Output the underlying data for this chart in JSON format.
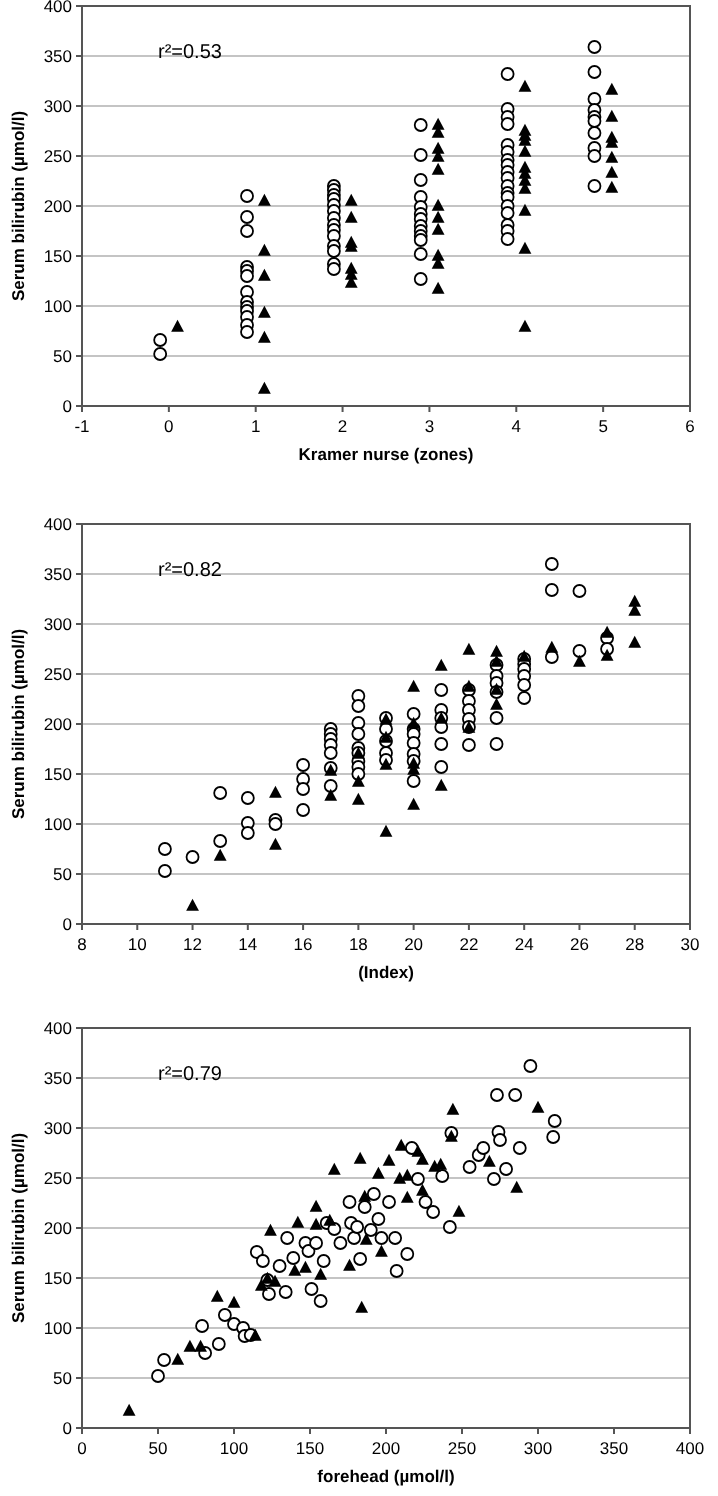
{
  "chart_data": [
    {
      "type": "scatter",
      "xlabel": "Kramer nurse (zones)",
      "ylabel": "Serum bilirubin (µmol/l)",
      "annotations": [
        "r²=0.53"
      ],
      "xlim": [
        -1,
        6
      ],
      "xticks": [
        -1,
        0,
        1,
        2,
        3,
        4,
        5,
        6
      ],
      "ylim": [
        0,
        400
      ],
      "yticks": [
        0,
        50,
        100,
        150,
        200,
        250,
        300,
        350,
        400
      ],
      "grid": "y",
      "series": [
        {
          "color": "#000000",
          "marker": "circle",
          "x": [
            -0.1,
            -0.1,
            0.9,
            0.9,
            0.9,
            0.9,
            0.9,
            0.9,
            0.9,
            0.9,
            0.9,
            0.9,
            0.9,
            0.9,
            0.9,
            1.9,
            1.9,
            1.9,
            1.9,
            1.9,
            1.9,
            1.9,
            1.9,
            1.9,
            1.9,
            1.9,
            1.9,
            1.9,
            1.9,
            2.9,
            2.9,
            2.9,
            2.9,
            2.9,
            2.9,
            2.9,
            2.9,
            2.9,
            2.9,
            2.9,
            2.9,
            2.9,
            3.9,
            3.9,
            3.9,
            3.9,
            3.9,
            3.9,
            3.9,
            3.9,
            3.9,
            3.9,
            3.9,
            3.9,
            3.9,
            3.9,
            3.9,
            3.9,
            3.9,
            3.9,
            4.9,
            4.9,
            4.9,
            4.9,
            4.9,
            4.9,
            4.9,
            4.9,
            4.9,
            4.9
          ],
          "values": [
            66,
            52,
            210,
            189,
            175,
            139,
            135,
            130,
            114,
            104,
            99,
            95,
            89,
            81,
            74,
            220,
            216,
            211,
            207,
            201,
            195,
            188,
            181,
            176,
            170,
            160,
            155,
            142,
            137,
            281,
            251,
            226,
            209,
            199,
            192,
            187,
            180,
            175,
            170,
            166,
            152,
            127,
            332,
            297,
            289,
            282,
            261,
            254,
            246,
            241,
            234,
            228,
            220,
            213,
            209,
            200,
            193,
            181,
            175,
            167,
            359,
            334,
            307,
            296,
            289,
            285,
            273,
            258,
            250,
            220
          ]
        },
        {
          "color": "#000000",
          "marker": "triangle",
          "x": [
            0.1,
            1.1,
            1.1,
            1.1,
            1.1,
            1.1,
            1.1,
            2.1,
            2.1,
            2.1,
            2.1,
            2.1,
            2.1,
            2.1,
            3.1,
            3.1,
            3.1,
            3.1,
            3.1,
            3.1,
            3.1,
            3.1,
            3.1,
            3.1,
            3.1,
            4.1,
            4.1,
            4.1,
            4.1,
            4.1,
            4.1,
            4.1,
            4.1,
            4.1,
            4.1,
            4.1,
            4.1,
            5.1,
            5.1,
            5.1,
            5.1,
            5.1,
            5.1,
            5.1
          ],
          "values": [
            79,
            205,
            155,
            130,
            93,
            68,
            17,
            205,
            188,
            163,
            159,
            137,
            131,
            123,
            281,
            273,
            257,
            249,
            236,
            200,
            188,
            176,
            150,
            142,
            117,
            319,
            275,
            270,
            265,
            254,
            238,
            232,
            225,
            217,
            195,
            157,
            79,
            316,
            289,
            268,
            263,
            248,
            233,
            218
          ]
        }
      ]
    },
    {
      "type": "scatter",
      "xlabel": "(Index)",
      "ylabel": "Serum bilirubin (µmol/l)",
      "annotations": [
        "r²=0.82"
      ],
      "xlim": [
        8,
        30
      ],
      "xticks": [
        8,
        10,
        12,
        14,
        16,
        18,
        20,
        22,
        24,
        26,
        28,
        30
      ],
      "ylim": [
        0,
        400
      ],
      "yticks": [
        0,
        50,
        100,
        150,
        200,
        250,
        300,
        350,
        400
      ],
      "grid": "y",
      "series": [
        {
          "color": "#000000",
          "marker": "circle",
          "x": [
            11,
            11,
            12,
            13,
            13,
            14,
            14,
            14,
            15,
            15,
            16,
            16,
            16,
            16,
            17,
            17,
            17,
            17,
            17,
            17,
            17,
            18,
            18,
            18,
            18,
            18,
            18,
            18,
            18,
            18,
            19,
            19,
            19,
            19,
            19,
            20,
            20,
            20,
            20,
            20,
            20,
            20,
            21,
            21,
            21,
            21,
            21,
            21,
            22,
            22,
            22,
            22,
            22,
            22,
            23,
            23,
            23,
            23,
            23,
            23,
            24,
            24,
            24,
            24,
            24,
            24,
            25,
            25,
            25,
            26,
            26,
            27,
            27
          ],
          "values": [
            75,
            53,
            67,
            131,
            83,
            126,
            101,
            91,
            104,
            100,
            159,
            145,
            135,
            114,
            195,
            190,
            185,
            179,
            171,
            156,
            138,
            228,
            218,
            201,
            190,
            176,
            171,
            163,
            157,
            150,
            206,
            195,
            183,
            171,
            164,
            210,
            195,
            190,
            181,
            170,
            163,
            143,
            234,
            214,
            206,
            197,
            180,
            157,
            234,
            223,
            214,
            205,
            197,
            179,
            259,
            248,
            241,
            232,
            206,
            180,
            265,
            260,
            255,
            248,
            239,
            226,
            360,
            334,
            267,
            333,
            273,
            286,
            275
          ]
        },
        {
          "color": "#000000",
          "marker": "triangle",
          "x": [
            12,
            13,
            15,
            15,
            17,
            17,
            18,
            18,
            18,
            19,
            19,
            19,
            19,
            20,
            20,
            20,
            20,
            20,
            21,
            21,
            21,
            22,
            22,
            22,
            23,
            23,
            23,
            23,
            24,
            25,
            26,
            27,
            27,
            28,
            28,
            28
          ],
          "values": [
            18,
            68,
            131,
            79,
            153,
            128,
            170,
            142,
            124,
            204,
            186,
            159,
            92,
            237,
            200,
            160,
            154,
            119,
            258,
            205,
            138,
            274,
            237,
            196,
            272,
            262,
            234,
            219,
            267,
            276,
            262,
            291,
            268,
            322,
            313,
            281
          ]
        }
      ]
    },
    {
      "type": "scatter",
      "xlabel": "forehead (µmol/l)",
      "ylabel": "Serum bilirubin (µmol/l)",
      "annotations": [
        "r²=0.79"
      ],
      "xlim": [
        0,
        400
      ],
      "xticks": [
        0,
        50,
        100,
        150,
        200,
        250,
        300,
        350,
        400
      ],
      "ylim": [
        0,
        400
      ],
      "yticks": [
        0,
        50,
        100,
        150,
        200,
        250,
        300,
        350,
        400
      ],
      "grid": "y",
      "series": [
        {
          "color": "#000000",
          "marker": "circle",
          "x": [
            50,
            54,
            79,
            81,
            90,
            94,
            100,
            106,
            107,
            111,
            115,
            119,
            122,
            123,
            130,
            134,
            135,
            139,
            147,
            149,
            151,
            154,
            157,
            159,
            161,
            166,
            170,
            176,
            177,
            179,
            181,
            183,
            186,
            190,
            192,
            195,
            197,
            202,
            206,
            207,
            214,
            217,
            221,
            226,
            231,
            237,
            242,
            243,
            255,
            261,
            264,
            271,
            273,
            274,
            275,
            279,
            285,
            288,
            295,
            310,
            311
          ],
          "values": [
            52,
            68,
            102,
            75,
            84,
            113,
            104,
            100,
            92,
            93,
            176,
            167,
            148,
            134,
            162,
            136,
            190,
            170,
            185,
            177,
            139,
            185,
            127,
            167,
            205,
            199,
            185,
            226,
            205,
            190,
            201,
            169,
            221,
            198,
            234,
            209,
            190,
            226,
            190,
            157,
            174,
            280,
            249,
            226,
            216,
            252,
            201,
            295,
            261,
            273,
            280,
            249,
            333,
            296,
            288,
            259,
            333,
            280,
            362,
            291,
            307
          ]
        },
        {
          "color": "#000000",
          "marker": "triangle",
          "x": [
            31,
            63,
            71,
            78,
            89,
            100,
            114,
            118,
            122,
            127,
            124,
            140,
            142,
            147,
            154,
            154,
            157,
            163,
            166,
            176,
            183,
            184,
            186,
            187,
            195,
            197,
            202,
            209,
            210,
            214,
            214,
            221,
            224,
            224,
            232,
            236,
            243,
            244,
            248,
            268,
            286,
            300
          ],
          "values": [
            17,
            68,
            81,
            81,
            131,
            125,
            92,
            142,
            149,
            146,
            197,
            157,
            205,
            160,
            221,
            203,
            153,
            207,
            258,
            162,
            269,
            120,
            231,
            188,
            254,
            176,
            267,
            249,
            282,
            252,
            230,
            276,
            268,
            237,
            261,
            263,
            291,
            318,
            216,
            266,
            240,
            320
          ]
        }
      ]
    }
  ]
}
